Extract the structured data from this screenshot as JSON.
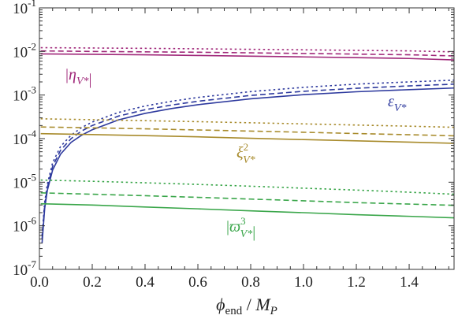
{
  "chart_data": {
    "type": "line",
    "xlabel": "ϕend / MP",
    "xlabel_parts": {
      "symbol": "ϕ",
      "sub": "end",
      "sep": " / ",
      "unit": "M",
      "unit_sub": "P"
    },
    "xlim": [
      0,
      1.57
    ],
    "ylim": [
      1e-07,
      0.1
    ],
    "y_scale": "log",
    "grid": false,
    "legend": "none",
    "x_ticks": [
      "0.0",
      "0.2",
      "0.4",
      "0.6",
      "0.8",
      "1.0",
      "1.2",
      "1.4"
    ],
    "x_tick_values": [
      0,
      0.2,
      0.4,
      0.6,
      0.8,
      1.0,
      1.2,
      1.4
    ],
    "y_tick_exponents": [
      -7,
      -6,
      -5,
      -4,
      -3,
      -2,
      -1
    ],
    "line_styles": [
      "solid",
      "dashed",
      "dotted"
    ],
    "groups": [
      {
        "label": "|ηV*|",
        "label_parts": {
          "open": "|",
          "sym": "η",
          "sub": "V*",
          "sup": "",
          "close": "|"
        },
        "color": "#a0287a",
        "series": [
          {
            "style": "solid",
            "x": [
              0.005,
              0.2,
              0.4,
              0.6,
              0.8,
              1.0,
              1.2,
              1.4,
              1.57
            ],
            "y": [
              0.0088,
              0.0086,
              0.0084,
              0.0081,
              0.0078,
              0.0075,
              0.0072,
              0.0069,
              0.0064
            ]
          },
          {
            "style": "dashed",
            "x": [
              0.005,
              0.2,
              0.4,
              0.6,
              0.8,
              1.0,
              1.2,
              1.4,
              1.57
            ],
            "y": [
              0.0103,
              0.01,
              0.0098,
              0.0096,
              0.0093,
              0.009,
              0.0087,
              0.0084,
              0.0079
            ]
          },
          {
            "style": "dotted",
            "x": [
              0.005,
              0.2,
              0.4,
              0.6,
              0.8,
              1.0,
              1.2,
              1.4,
              1.57
            ],
            "y": [
              0.0122,
              0.012,
              0.0118,
              0.0115,
              0.0112,
              0.0109,
              0.0106,
              0.0103,
              0.0098
            ]
          }
        ]
      },
      {
        "label": "εV*",
        "label_parts": {
          "open": "",
          "sym": "ε",
          "sub": "V*",
          "sup": "",
          "close": ""
        },
        "color": "#2e3a9e",
        "series": [
          {
            "style": "solid",
            "x": [
              0.01,
              0.02,
              0.03,
              0.05,
              0.08,
              0.12,
              0.16,
              0.2,
              0.3,
              0.4,
              0.5,
              0.6,
              0.8,
              1.0,
              1.2,
              1.4,
              1.57
            ],
            "y": [
              4e-07,
              2.5e-06,
              6.5e-06,
              1.9e-05,
              4.4e-05,
              8.2e-05,
              0.00012,
              0.00016,
              0.00027,
              0.00038,
              0.00049,
              0.0006,
              0.00082,
              0.00102,
              0.00119,
              0.00133,
              0.00145
            ]
          },
          {
            "style": "dashed",
            "x": [
              0.01,
              0.02,
              0.03,
              0.05,
              0.08,
              0.12,
              0.16,
              0.2,
              0.3,
              0.4,
              0.5,
              0.6,
              0.8,
              1.0,
              1.2,
              1.4,
              1.57
            ],
            "y": [
              5e-07,
              3e-06,
              7.5e-06,
              2.3e-05,
              5.4e-05,
              0.0001,
              0.00015,
              0.0002,
              0.00033,
              0.00046,
              0.00059,
              0.00072,
              0.00098,
              0.00122,
              0.00143,
              0.00162,
              0.00178
            ]
          },
          {
            "style": "dotted",
            "x": [
              0.01,
              0.02,
              0.03,
              0.05,
              0.08,
              0.12,
              0.16,
              0.2,
              0.3,
              0.4,
              0.5,
              0.6,
              0.8,
              1.0,
              1.2,
              1.4,
              1.57
            ],
            "y": [
              6e-07,
              3.5e-06,
              9e-06,
              2.8e-05,
              6.6e-05,
              0.00012,
              0.00018,
              0.00024,
              0.0004,
              0.00056,
              0.00072,
              0.00088,
              0.0012,
              0.0015,
              0.00178,
              0.002,
              0.0022
            ]
          }
        ]
      },
      {
        "label": "ξ2V*",
        "label_parts": {
          "open": "",
          "sym": "ξ",
          "sub": "V*",
          "sup": "2",
          "close": ""
        },
        "color": "#a88b2c",
        "series": [
          {
            "style": "solid",
            "x": [
              0.005,
              0.2,
              0.4,
              0.6,
              0.8,
              1.0,
              1.2,
              1.4,
              1.57
            ],
            "y": [
              0.00013,
              0.000124,
              0.000117,
              0.00011,
              0.000102,
              9.5e-05,
              8.9e-05,
              8.3e-05,
              7.8e-05
            ]
          },
          {
            "style": "dashed",
            "x": [
              0.005,
              0.2,
              0.4,
              0.6,
              0.8,
              1.0,
              1.2,
              1.4,
              1.57
            ],
            "y": [
              0.000185,
              0.000177,
              0.000168,
              0.000158,
              0.000149,
              0.00014,
              0.000131,
              0.000123,
              0.000116
            ]
          },
          {
            "style": "dotted",
            "x": [
              0.005,
              0.2,
              0.4,
              0.6,
              0.8,
              1.0,
              1.2,
              1.4,
              1.57
            ],
            "y": [
              0.000285,
              0.000272,
              0.000258,
              0.000245,
              0.000231,
              0.000218,
              0.000205,
              0.000193,
              0.000182
            ]
          }
        ]
      },
      {
        "label": "|ϖ3V*|",
        "label_parts": {
          "open": "|",
          "sym": "ϖ",
          "sub": "V*",
          "sup": "3",
          "close": "|"
        },
        "color": "#3aa64a",
        "series": [
          {
            "style": "solid",
            "x": [
              0.005,
              0.2,
              0.4,
              0.6,
              0.8,
              1.0,
              1.2,
              1.4,
              1.57
            ],
            "y": [
              3.2e-06,
              3e-06,
              2.7e-06,
              2.45e-06,
              2.2e-06,
              2e-06,
              1.8e-06,
              1.65e-06,
              1.52e-06
            ]
          },
          {
            "style": "dashed",
            "x": [
              0.005,
              0.2,
              0.4,
              0.6,
              0.8,
              1.0,
              1.2,
              1.4,
              1.57
            ],
            "y": [
              5.7e-06,
              5.3e-06,
              4.9e-06,
              4.5e-06,
              4.1e-06,
              3.75e-06,
              3.4e-06,
              3.15e-06,
              2.95e-06
            ]
          },
          {
            "style": "dotted",
            "x": [
              0.005,
              0.2,
              0.4,
              0.6,
              0.8,
              1.0,
              1.2,
              1.4,
              1.57
            ],
            "y": [
              1.12e-05,
              1.05e-05,
              9.7e-06,
              8.9e-06,
              8.1e-06,
              7.3e-06,
              6.6e-06,
              5.9e-06,
              5.3e-06
            ]
          }
        ]
      }
    ]
  }
}
